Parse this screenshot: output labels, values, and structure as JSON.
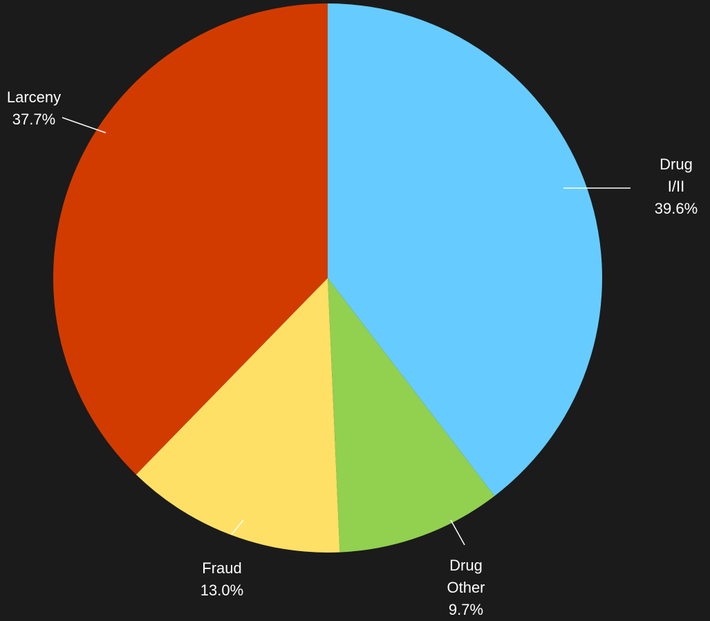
{
  "chart_data": {
    "type": "pie",
    "categories": [
      "Drug I/II",
      "Drug Other",
      "Fraud",
      "Larceny"
    ],
    "values": [
      39.6,
      9.7,
      13.0,
      37.7
    ],
    "value_labels": [
      "39.6%",
      "9.7%",
      "13.0%",
      "37.7%"
    ],
    "colors": [
      "#66ccff",
      "#92d050",
      "#ffe066",
      "#d13b00"
    ]
  }
}
